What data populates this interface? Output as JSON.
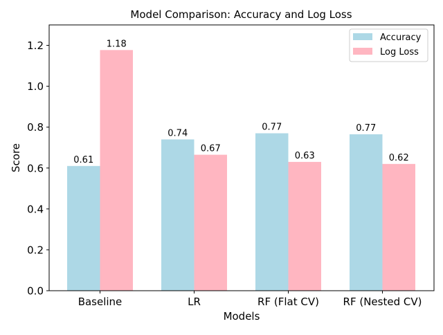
{
  "chart_data": {
    "type": "bar",
    "title": "Model Comparison: Accuracy and Log Loss",
    "xlabel": "Models",
    "ylabel": "Score",
    "categories": [
      "Baseline",
      "LR",
      "RF (Flat CV)",
      "RF (Nested CV)"
    ],
    "series": [
      {
        "name": "Accuracy",
        "color": "#add8e6",
        "values": [
          0.61,
          0.74,
          0.77,
          0.765
        ],
        "labels": [
          "0.61",
          "0.74",
          "0.77",
          "0.77"
        ]
      },
      {
        "name": "Log Loss",
        "color": "#ffb6c1",
        "values": [
          1.177,
          0.665,
          0.63,
          0.62
        ],
        "labels": [
          "1.18",
          "0.67",
          "0.63",
          "0.62"
        ]
      }
    ],
    "ylim": [
      0,
      1.3
    ],
    "yticks": [
      0.0,
      0.2,
      0.4,
      0.6,
      0.8,
      1.0,
      1.2
    ],
    "ytick_labels": [
      "0.0",
      "0.2",
      "0.4",
      "0.6",
      "0.8",
      "1.0",
      "1.2"
    ],
    "grid": false,
    "legend_position": "top-right"
  }
}
